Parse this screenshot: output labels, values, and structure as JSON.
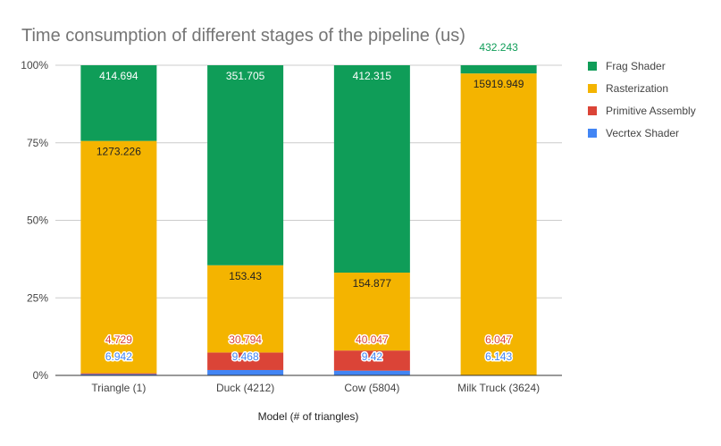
{
  "chart_data": {
    "type": "bar",
    "stacked": "percent",
    "title": "Time consumption of different stages of the pipeline (us)",
    "xlabel": "Model (# of triangles)",
    "ylabel": "",
    "categories": [
      "Triangle (1)",
      "Duck (4212)",
      "Cow (5804)",
      "Milk Truck (3624)"
    ],
    "y_ticks": [
      "0%",
      "25%",
      "50%",
      "75%",
      "100%"
    ],
    "ylim": [
      0,
      1
    ],
    "grid": true,
    "legend_position": "right",
    "series": [
      {
        "name": "Vecrtex Shader",
        "color": "#4285f4",
        "values": [
          6.942,
          9.468,
          9.42,
          6.143
        ],
        "labels": [
          "6.942",
          "9.468",
          "9.42",
          "6.143"
        ]
      },
      {
        "name": "Primitive Assembly",
        "color": "#db4437",
        "values": [
          4.729,
          30.794,
          40.047,
          6.047
        ],
        "labels": [
          "4.729",
          "30.794",
          "40.047",
          "6.047"
        ]
      },
      {
        "name": "Rasterization",
        "color": "#f4b400",
        "values": [
          1273.226,
          153.43,
          154.877,
          15919.949
        ],
        "labels": [
          "1273.226",
          "153.43",
          "154.877",
          "15919.949"
        ]
      },
      {
        "name": "Frag Shader",
        "color": "#0f9d58",
        "values": [
          414.694,
          351.705,
          412.315,
          432.243
        ],
        "labels": [
          "414.694",
          "351.705",
          "412.315",
          "432.243"
        ]
      }
    ]
  }
}
